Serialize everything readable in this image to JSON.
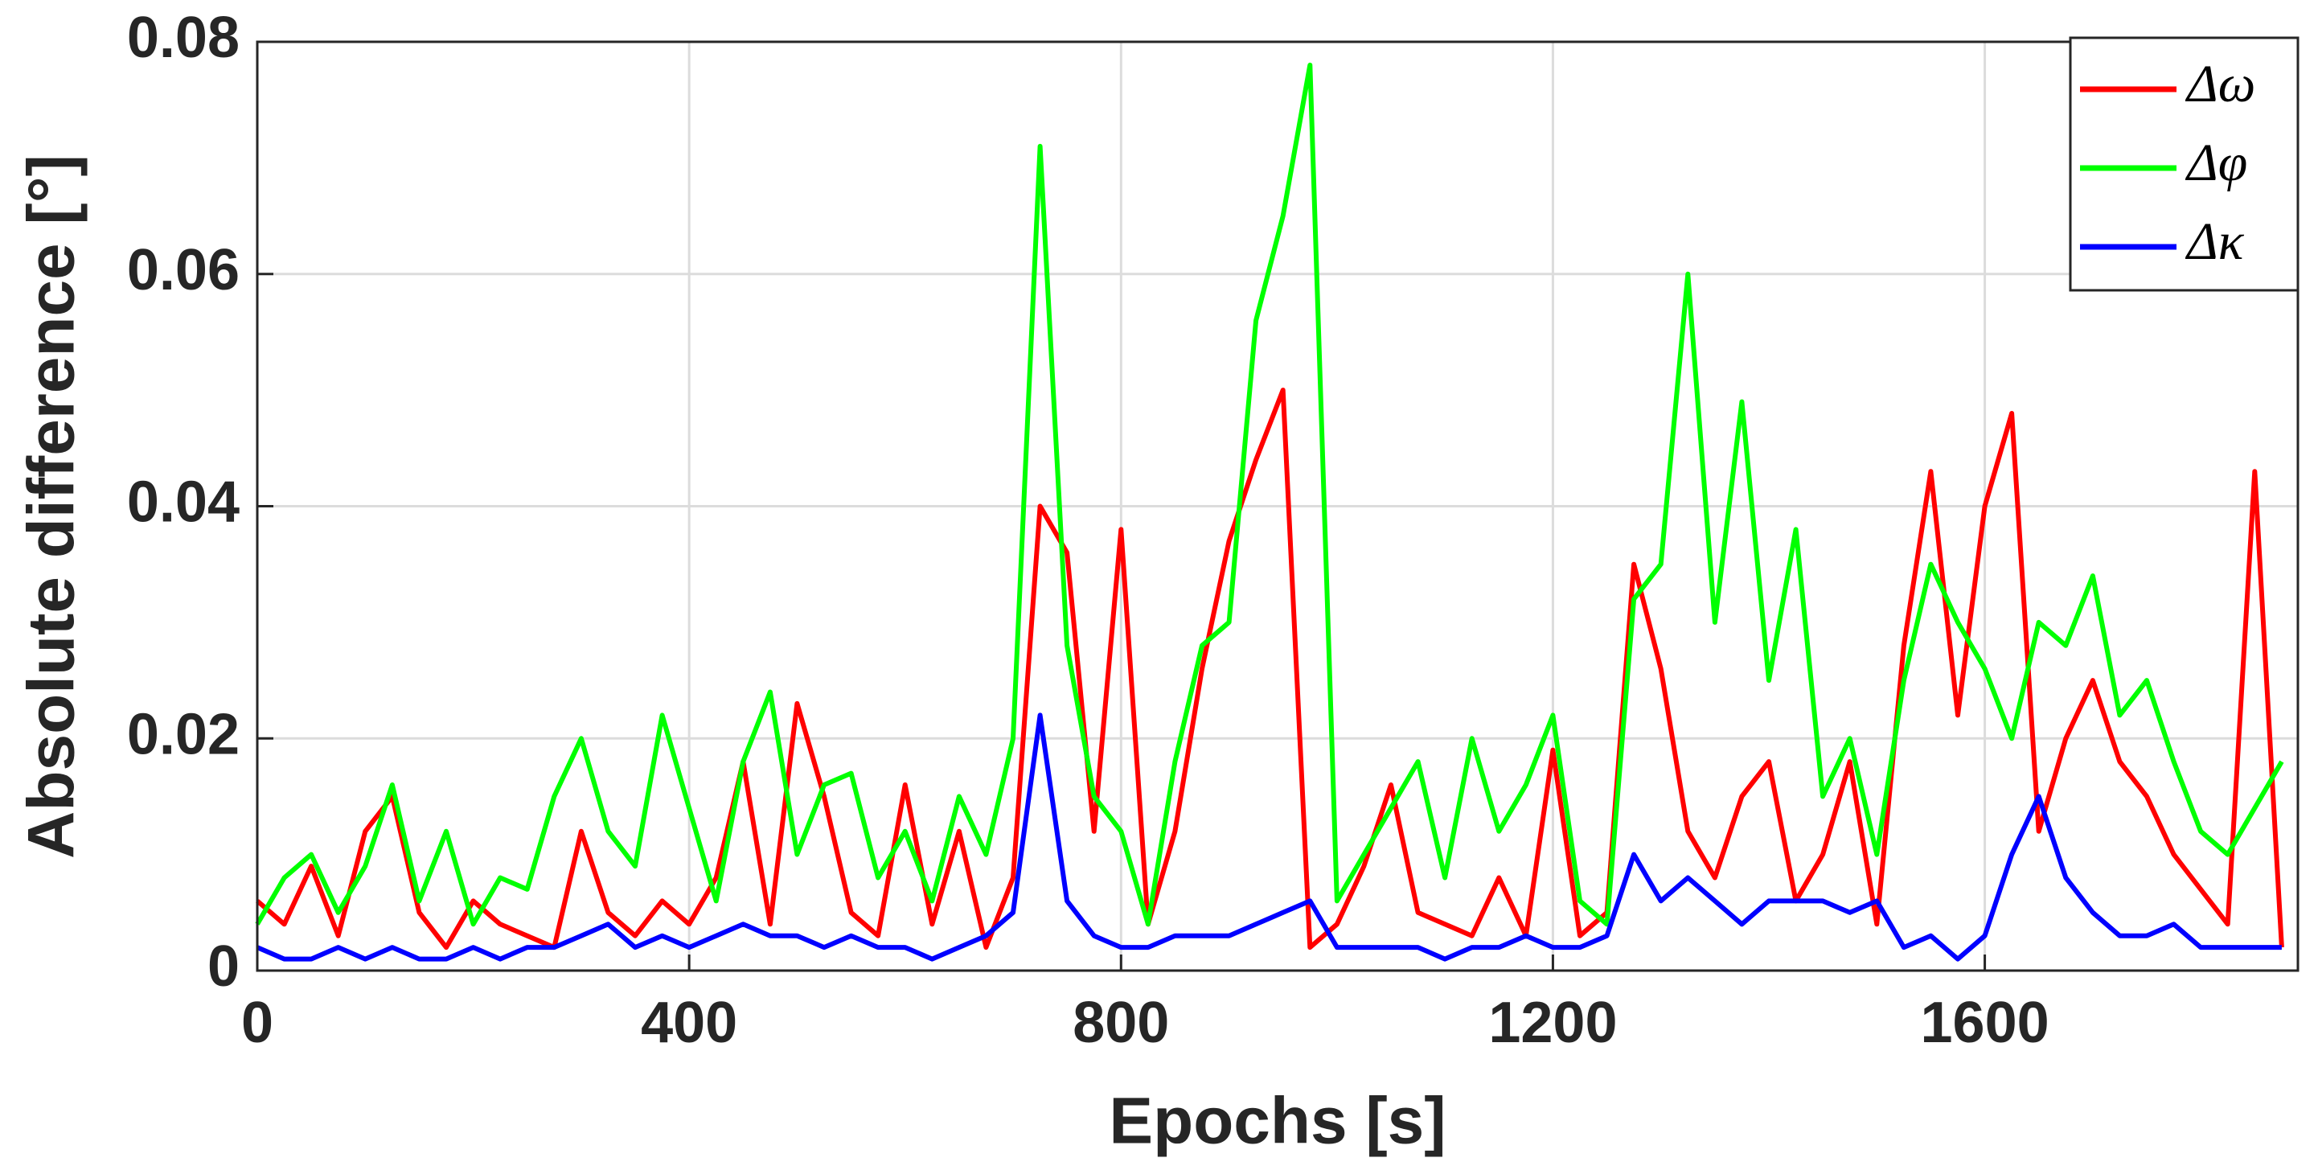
{
  "chart_data": {
    "type": "line",
    "xlabel": "Epochs [s]",
    "ylabel": "Absolute difference [°]",
    "x": [
      0,
      25,
      50,
      75,
      100,
      125,
      150,
      175,
      200,
      225,
      250,
      275,
      300,
      325,
      350,
      375,
      400,
      425,
      450,
      475,
      500,
      525,
      550,
      575,
      600,
      625,
      650,
      675,
      700,
      725,
      750,
      775,
      800,
      825,
      850,
      875,
      900,
      925,
      950,
      975,
      1000,
      1025,
      1050,
      1075,
      1100,
      1125,
      1150,
      1175,
      1200,
      1225,
      1250,
      1275,
      1300,
      1325,
      1350,
      1375,
      1400,
      1425,
      1450,
      1475,
      1500,
      1525,
      1550,
      1575,
      1600,
      1625,
      1650,
      1675,
      1700,
      1725,
      1750,
      1775,
      1800,
      1825,
      1850,
      1875
    ],
    "series": [
      {
        "name": "Δω",
        "color": "#ff0000",
        "values": [
          0.006,
          0.004,
          0.009,
          0.003,
          0.012,
          0.015,
          0.005,
          0.002,
          0.006,
          0.004,
          0.003,
          0.002,
          0.012,
          0.005,
          0.003,
          0.006,
          0.004,
          0.008,
          0.018,
          0.004,
          0.023,
          0.015,
          0.005,
          0.003,
          0.016,
          0.004,
          0.012,
          0.002,
          0.008,
          0.04,
          0.036,
          0.012,
          0.038,
          0.004,
          0.012,
          0.026,
          0.037,
          0.044,
          0.05,
          0.002,
          0.004,
          0.009,
          0.016,
          0.005,
          0.004,
          0.003,
          0.008,
          0.003,
          0.019,
          0.003,
          0.005,
          0.035,
          0.026,
          0.012,
          0.008,
          0.015,
          0.018,
          0.006,
          0.01,
          0.018,
          0.004,
          0.028,
          0.043,
          0.022,
          0.04,
          0.048,
          0.012,
          0.02,
          0.025,
          0.018,
          0.015,
          0.01,
          0.007,
          0.004,
          0.043,
          0.002
        ]
      },
      {
        "name": "Δφ",
        "color": "#00ff00",
        "values": [
          0.004,
          0.008,
          0.01,
          0.005,
          0.009,
          0.016,
          0.006,
          0.012,
          0.004,
          0.008,
          0.007,
          0.015,
          0.02,
          0.012,
          0.009,
          0.022,
          0.014,
          0.006,
          0.018,
          0.024,
          0.01,
          0.016,
          0.017,
          0.008,
          0.012,
          0.006,
          0.015,
          0.01,
          0.02,
          0.071,
          0.028,
          0.015,
          0.012,
          0.004,
          0.018,
          0.028,
          0.03,
          0.056,
          0.065,
          0.078,
          0.006,
          0.01,
          0.014,
          0.018,
          0.008,
          0.02,
          0.012,
          0.016,
          0.022,
          0.006,
          0.004,
          0.032,
          0.035,
          0.06,
          0.03,
          0.049,
          0.025,
          0.038,
          0.015,
          0.02,
          0.01,
          0.025,
          0.035,
          0.03,
          0.026,
          0.02,
          0.03,
          0.028,
          0.034,
          0.022,
          0.025,
          0.018,
          0.012,
          0.01,
          0.014,
          0.018
        ]
      },
      {
        "name": "Δκ",
        "color": "#0000ff",
        "values": [
          0.002,
          0.001,
          0.001,
          0.002,
          0.001,
          0.002,
          0.001,
          0.001,
          0.002,
          0.001,
          0.002,
          0.002,
          0.003,
          0.004,
          0.002,
          0.003,
          0.002,
          0.003,
          0.004,
          0.003,
          0.003,
          0.002,
          0.003,
          0.002,
          0.002,
          0.001,
          0.002,
          0.003,
          0.005,
          0.022,
          0.006,
          0.003,
          0.002,
          0.002,
          0.003,
          0.003,
          0.003,
          0.004,
          0.005,
          0.006,
          0.002,
          0.002,
          0.002,
          0.002,
          0.001,
          0.002,
          0.002,
          0.003,
          0.002,
          0.002,
          0.003,
          0.01,
          0.006,
          0.008,
          0.006,
          0.004,
          0.006,
          0.006,
          0.006,
          0.005,
          0.006,
          0.002,
          0.003,
          0.001,
          0.003,
          0.01,
          0.015,
          0.008,
          0.005,
          0.003,
          0.003,
          0.004,
          0.002,
          0.002,
          0.002,
          0.002
        ]
      }
    ],
    "xlim": [
      0,
      1890
    ],
    "xticks": [
      0,
      400,
      800,
      1200,
      1600
    ],
    "ylim": [
      0,
      0.08
    ],
    "yticks": [
      0,
      0.02,
      0.04,
      0.06,
      0.08
    ],
    "grid": true,
    "legend": "upper-right"
  }
}
